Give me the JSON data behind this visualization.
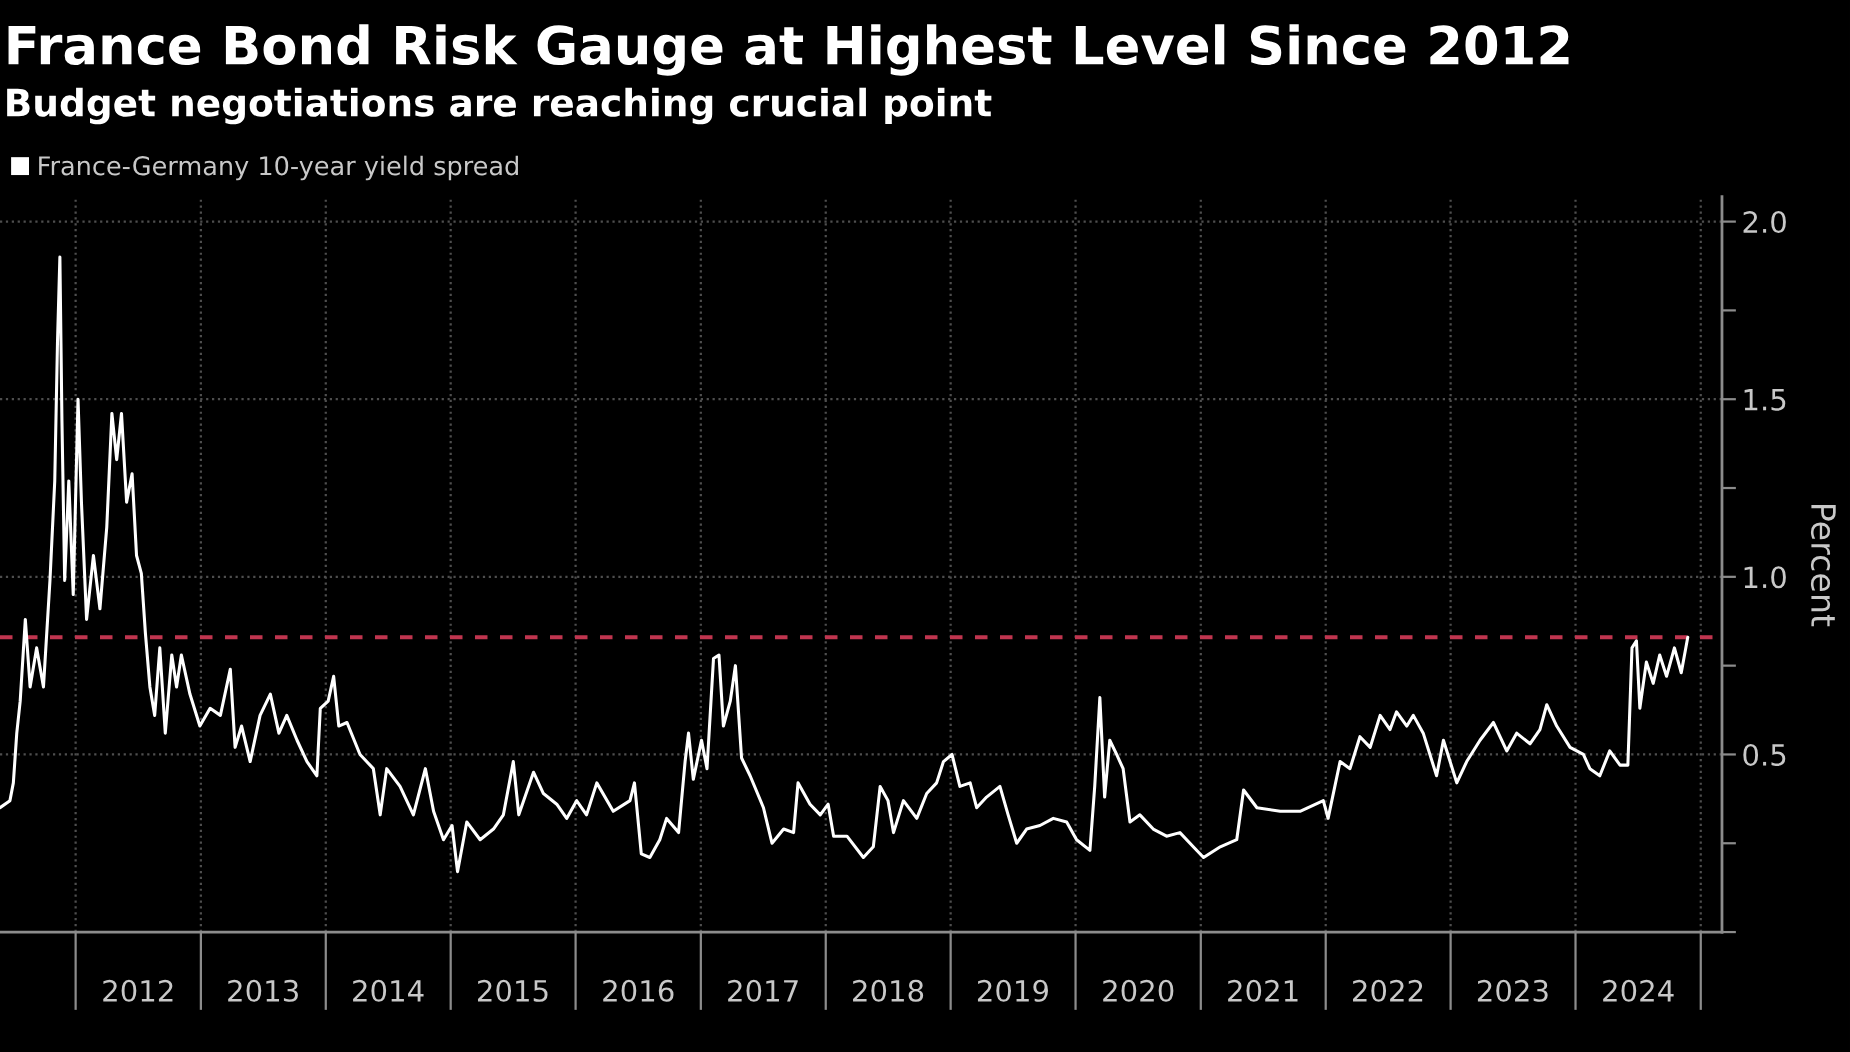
{
  "chart_data": {
    "type": "line",
    "title": "France Bond Risk Gauge at Highest Level Since 2012",
    "subtitle": "Budget negotiations are reaching crucial point",
    "ylabel": "Percent",
    "legend": "top left",
    "grid": true,
    "line_style": "solid",
    "xlim": [
      "2011-05-25",
      "2025-03-04"
    ],
    "xticks": [
      {
        "value": "2012-01-01",
        "label": null
      },
      {
        "value": "2013-01-01",
        "label": null
      },
      {
        "value": "2014-01-01",
        "label": null
      },
      {
        "value": "2015-01-01",
        "label": null
      },
      {
        "value": "2016-01-01",
        "label": null
      },
      {
        "value": "2017-01-01",
        "label": null
      },
      {
        "value": "2018-01-01",
        "label": null
      },
      {
        "value": "2019-01-01",
        "label": null
      },
      {
        "value": "2020-01-01",
        "label": null
      },
      {
        "value": "2021-01-01",
        "label": null
      },
      {
        "value": "2022-01-01",
        "label": null
      },
      {
        "value": "2023-01-01",
        "label": null
      },
      {
        "value": "2024-01-01",
        "label": null
      },
      {
        "value": "2025-01-01",
        "label": null
      },
      {
        "value": "2012-07-02",
        "label": "2012"
      },
      {
        "value": "2013-07-02",
        "label": "2013"
      },
      {
        "value": "2014-07-02",
        "label": "2014"
      },
      {
        "value": "2015-07-02",
        "label": "2015"
      },
      {
        "value": "2016-07-02",
        "label": "2016"
      },
      {
        "value": "2017-07-02",
        "label": "2017"
      },
      {
        "value": "2018-07-02",
        "label": "2018"
      },
      {
        "value": "2019-07-02",
        "label": "2019"
      },
      {
        "value": "2020-07-02",
        "label": "2020"
      },
      {
        "value": "2021-07-02",
        "label": "2021"
      },
      {
        "value": "2022-07-02",
        "label": "2022"
      },
      {
        "value": "2023-07-02",
        "label": "2023"
      },
      {
        "value": "2024-07-02",
        "label": "2024"
      }
    ],
    "ylim": [
      0,
      2.07
    ],
    "yticks": [
      {
        "value": 0,
        "label": null
      },
      {
        "value": 0.25,
        "label": null
      },
      0.5,
      {
        "value": 0.75,
        "label": null
      },
      {
        "value": 1,
        "label": "1.0"
      },
      {
        "value": 1.25,
        "label": null
      },
      1.5,
      {
        "value": 1.75,
        "label": null
      },
      {
        "value": 2,
        "label": "2.0"
      }
    ],
    "ref_lines": [
      {
        "axis": "y",
        "value": 0.83,
        "color": "#c0354f",
        "line_style": "dashed"
      }
    ],
    "x": [
      "2011-05-25",
      "2011-06-23",
      "2011-07-03",
      "2011-07-13",
      "2011-07-23",
      "2011-08-07",
      "2011-08-21",
      "2011-09-09",
      "2011-09-29",
      "2011-10-18",
      "2011-11-01",
      "2011-11-09",
      "2011-11-16",
      "2011-11-22",
      "2011-11-30",
      "2011-12-12",
      "2011-12-25",
      "2012-01-08",
      "2012-01-18",
      "2012-02-02",
      "2012-02-22",
      "2012-03-12",
      "2012-04-01",
      "2012-04-16",
      "2012-04-30",
      "2012-05-14",
      "2012-05-29",
      "2012-06-14",
      "2012-06-27",
      "2012-07-11",
      "2012-07-23",
      "2012-08-05",
      "2012-08-19",
      "2012-09-03",
      "2012-09-19",
      "2012-10-08",
      "2012-10-22",
      "2012-11-05",
      "2012-11-30",
      "2012-12-29",
      "2013-01-28",
      "2013-02-27",
      "2013-03-28",
      "2013-04-11",
      "2013-04-30",
      "2013-05-25",
      "2013-06-23",
      "2013-07-23",
      "2013-08-17",
      "2013-09-09",
      "2013-10-09",
      "2013-11-07",
      "2013-12-06",
      "2013-12-16",
      "2014-01-08",
      "2014-01-24",
      "2014-02-08",
      "2014-03-04",
      "2014-04-11",
      "2014-05-20",
      "2014-06-09",
      "2014-06-28",
      "2014-08-06",
      "2014-09-14",
      "2014-10-19",
      "2014-11-12",
      "2014-12-11",
      "2015-01-05",
      "2015-01-21",
      "2015-02-17",
      "2015-03-28",
      "2015-05-06",
      "2015-06-04",
      "2015-07-03",
      "2015-07-19",
      "2015-08-31",
      "2015-09-29",
      "2015-11-07",
      "2015-12-06",
      "2016-01-04",
      "2016-02-02",
      "2016-03-03",
      "2016-04-20",
      "2016-06-08",
      "2016-06-21",
      "2016-07-11",
      "2016-08-05",
      "2016-09-03",
      "2016-09-23",
      "2016-10-28",
      "2016-11-16",
      "2016-11-26",
      "2016-12-10",
      "2017-01-03",
      "2017-01-19",
      "2017-02-07",
      "2017-02-23",
      "2017-03-08",
      "2017-03-28",
      "2017-04-12",
      "2017-04-30",
      "2017-05-25",
      "2017-07-03",
      "2017-07-28",
      "2017-08-31",
      "2017-09-29",
      "2017-10-12",
      "2017-11-16",
      "2017-12-16",
      "2018-01-08",
      "2018-01-24",
      "2018-03-04",
      "2018-04-21",
      "2018-05-20",
      "2018-06-09",
      "2018-07-02",
      "2018-07-18",
      "2018-08-16",
      "2018-09-24",
      "2018-10-23",
      "2018-11-21",
      "2018-12-11",
      "2019-01-05",
      "2019-01-28",
      "2019-02-27",
      "2019-03-18",
      "2019-04-16",
      "2019-05-25",
      "2019-06-18",
      "2019-07-13",
      "2019-08-11",
      "2019-09-19",
      "2019-10-28",
      "2019-12-06",
      "2020-01-04",
      "2020-02-12",
      "2020-02-26",
      "2020-03-12",
      "2020-03-26",
      "2020-04-10",
      "2020-04-30",
      "2020-05-19",
      "2020-06-08",
      "2020-07-07",
      "2020-08-15",
      "2020-09-23",
      "2020-11-01",
      "2020-12-10",
      "2021-01-09",
      "2021-02-27",
      "2021-04-16",
      "2021-05-06",
      "2021-06-14",
      "2021-08-21",
      "2021-10-18",
      "2021-12-25",
      "2022-01-08",
      "2022-02-12",
      "2022-03-13",
      "2022-04-11",
      "2022-05-11",
      "2022-06-09",
      "2022-07-08",
      "2022-07-27",
      "2022-08-26",
      "2022-09-14",
      "2022-10-13",
      "2022-11-21",
      "2022-12-11",
      "2023-01-19",
      "2023-02-17",
      "2023-03-28",
      "2023-05-06",
      "2023-06-14",
      "2023-07-13",
      "2023-08-21",
      "2023-09-19",
      "2023-10-09",
      "2023-11-07",
      "2023-12-16",
      "2024-01-24",
      "2024-02-12",
      "2024-03-12",
      "2024-04-10",
      "2024-05-10",
      "2024-06-02",
      "2024-06-14",
      "2024-06-27",
      "2024-07-07",
      "2024-07-26",
      "2024-08-15",
      "2024-09-03",
      "2024-09-23",
      "2024-10-16",
      "2024-11-05",
      "2024-11-24"
    ],
    "series": [
      {
        "name": "France-Germany 10-year yield spread",
        "color": "#ffffff",
        "values": [
          0.35,
          0.37,
          0.42,
          0.56,
          0.65,
          0.88,
          0.69,
          0.8,
          0.69,
          0.99,
          1.27,
          1.66,
          1.9,
          1.44,
          0.99,
          1.27,
          0.95,
          1.5,
          1.21,
          0.88,
          1.06,
          0.91,
          1.14,
          1.46,
          1.33,
          1.46,
          1.21,
          1.29,
          1.06,
          1.01,
          0.84,
          0.69,
          0.61,
          0.8,
          0.56,
          0.78,
          0.69,
          0.78,
          0.67,
          0.58,
          0.63,
          0.61,
          0.74,
          0.52,
          0.58,
          0.48,
          0.61,
          0.67,
          0.56,
          0.61,
          0.54,
          0.48,
          0.44,
          0.63,
          0.65,
          0.72,
          0.58,
          0.59,
          0.5,
          0.46,
          0.33,
          0.46,
          0.41,
          0.33,
          0.46,
          0.34,
          0.26,
          0.3,
          0.17,
          0.31,
          0.26,
          0.29,
          0.33,
          0.48,
          0.33,
          0.45,
          0.39,
          0.36,
          0.32,
          0.37,
          0.33,
          0.42,
          0.34,
          0.37,
          0.42,
          0.22,
          0.21,
          0.26,
          0.32,
          0.28,
          0.48,
          0.56,
          0.43,
          0.54,
          0.46,
          0.77,
          0.78,
          0.58,
          0.65,
          0.75,
          0.49,
          0.44,
          0.35,
          0.25,
          0.29,
          0.28,
          0.42,
          0.36,
          0.33,
          0.36,
          0.27,
          0.27,
          0.21,
          0.24,
          0.41,
          0.37,
          0.28,
          0.37,
          0.32,
          0.39,
          0.42,
          0.48,
          0.5,
          0.41,
          0.42,
          0.35,
          0.38,
          0.41,
          0.33,
          0.25,
          0.29,
          0.3,
          0.32,
          0.31,
          0.26,
          0.23,
          0.41,
          0.66,
          0.38,
          0.54,
          0.5,
          0.46,
          0.31,
          0.33,
          0.29,
          0.27,
          0.28,
          0.24,
          0.21,
          0.24,
          0.26,
          0.4,
          0.35,
          0.34,
          0.34,
          0.37,
          0.32,
          0.48,
          0.46,
          0.55,
          0.52,
          0.61,
          0.57,
          0.62,
          0.58,
          0.61,
          0.56,
          0.44,
          0.54,
          0.42,
          0.48,
          0.54,
          0.59,
          0.51,
          0.56,
          0.53,
          0.57,
          0.64,
          0.58,
          0.52,
          0.5,
          0.46,
          0.44,
          0.51,
          0.47,
          0.47,
          0.8,
          0.82,
          0.63,
          0.76,
          0.7,
          0.78,
          0.72,
          0.8,
          0.73,
          0.83
        ]
      }
    ]
  }
}
